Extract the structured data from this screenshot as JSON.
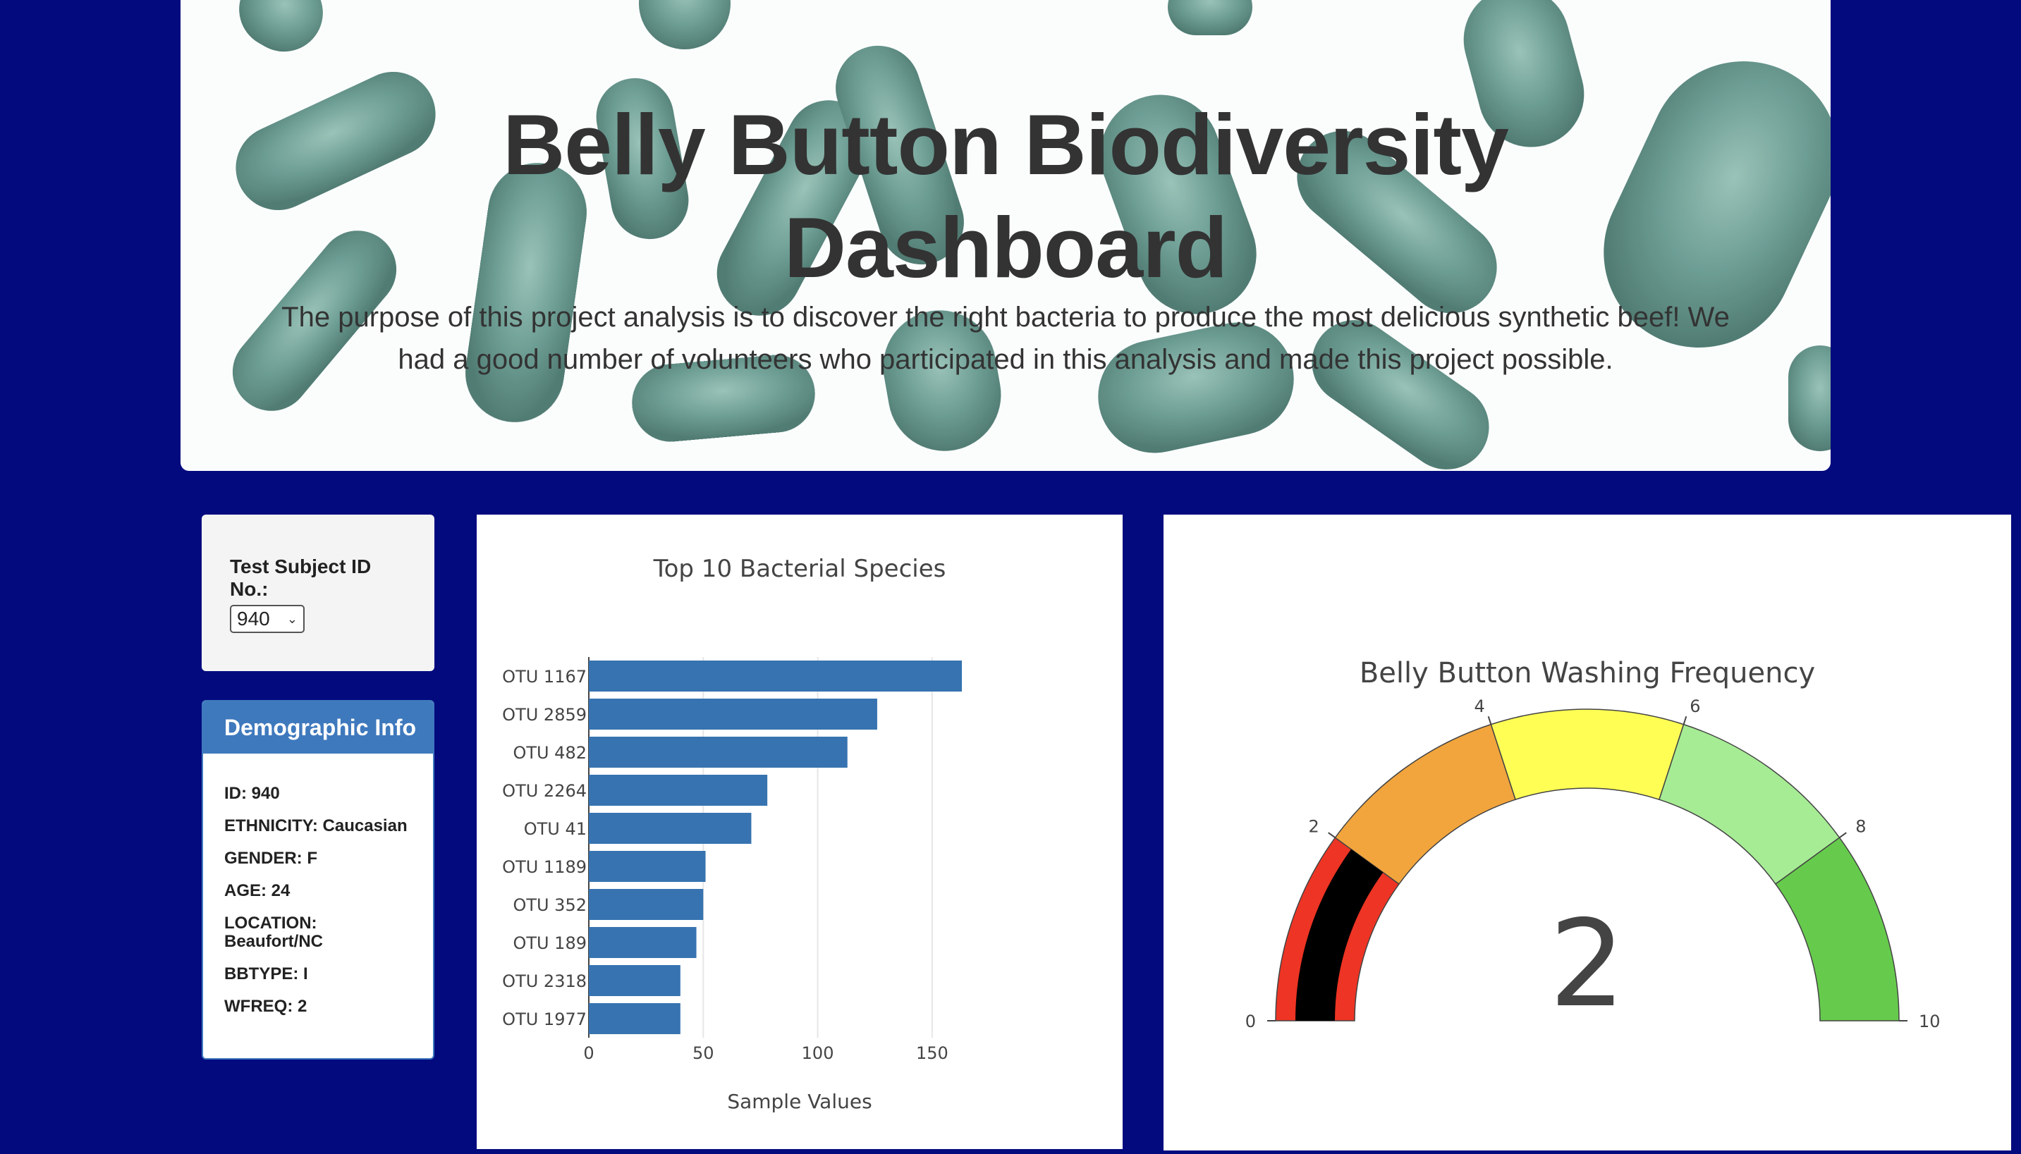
{
  "header": {
    "title_line1": "Belly Button Biodiversity",
    "title_line2": "Dashboard",
    "lead": "The purpose of this project analysis is to discover the right bacteria to produce the most delicious synthetic beef! We had a good number of volunteers who participated in this analysis and made this project possible."
  },
  "selector": {
    "label": "Test Subject ID No.:",
    "selected_value": "940"
  },
  "demographics": {
    "title": "Demographic Info",
    "rows": [
      "ID: 940",
      "ETHNICITY: Caucasian",
      "GENDER: F",
      "AGE: 24",
      "LOCATION: Beaufort/NC",
      "BBTYPE: I",
      "WFREQ: 2"
    ]
  },
  "colors": {
    "background": "#030a7e",
    "bar": "#3773b0",
    "panel_header": "#3f79bd"
  },
  "chart_data": [
    {
      "type": "bar",
      "orientation": "horizontal",
      "title": "Top 10 Bacterial Species",
      "xlabel": "Sample Values",
      "ylabel": "",
      "categories": [
        "OTU 1167",
        "OTU 2859",
        "OTU 482",
        "OTU 2264",
        "OTU 41",
        "OTU 1189",
        "OTU 352",
        "OTU 189",
        "OTU 2318",
        "OTU 1977"
      ],
      "values": [
        163,
        126,
        113,
        78,
        71,
        51,
        50,
        47,
        40,
        40
      ],
      "xlim": [
        0,
        175
      ],
      "xticks": [
        0,
        50,
        100,
        150
      ],
      "grid": true
    },
    {
      "type": "gauge",
      "title": "Belly Button Washing Frequency",
      "value": 2,
      "range": [
        0,
        10
      ],
      "ticks": [
        0,
        2,
        4,
        6,
        8,
        10
      ],
      "steps": [
        {
          "range": [
            0,
            2
          ],
          "color": "#ee3424"
        },
        {
          "range": [
            2,
            4
          ],
          "color": "#f2a53c"
        },
        {
          "range": [
            4,
            6
          ],
          "color": "#fefe55"
        },
        {
          "range": [
            6,
            8
          ],
          "color": "#a6ec94"
        },
        {
          "range": [
            8,
            10
          ],
          "color": "#66cb4c"
        }
      ],
      "bar_color": "#000000"
    }
  ]
}
